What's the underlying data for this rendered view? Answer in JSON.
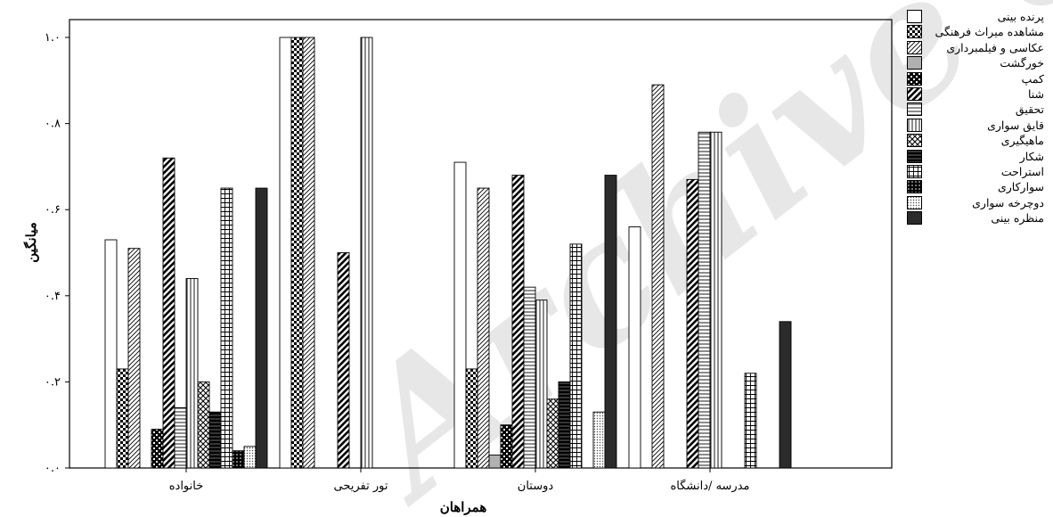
{
  "chart_data": {
    "type": "bar",
    "xlabel": "همراهان",
    "ylabel": "میانگین",
    "ylim": [
      0,
      1.0
    ],
    "yticks": [
      {
        "value": 0.0,
        "label": "۰.۰"
      },
      {
        "value": 0.2,
        "label": "۰.۲"
      },
      {
        "value": 0.4,
        "label": "۰.۴"
      },
      {
        "value": 0.6,
        "label": "۰.۶"
      },
      {
        "value": 0.8,
        "label": "۰.۸"
      },
      {
        "value": 1.0,
        "label": "۱.۰"
      }
    ],
    "categories": [
      "خانواده",
      "تور تفریحی",
      "دوستان",
      "مدرسه /دانشگاه"
    ],
    "series": [
      {
        "name": "پرنده بینی",
        "pattern": "white",
        "values": [
          0.53,
          1.0,
          0.71,
          0.56
        ]
      },
      {
        "name": "مشاهده میراث فرهنگی",
        "pattern": "checker",
        "values": [
          0.23,
          1.0,
          0.23,
          0
        ]
      },
      {
        "name": "عکاسی و فیلمبرداری",
        "pattern": "diag-thin",
        "values": [
          0.51,
          1.0,
          0.65,
          0.89
        ]
      },
      {
        "name": "خورگشت",
        "pattern": "gray",
        "values": [
          0,
          0,
          0.03,
          0
        ]
      },
      {
        "name": "کمپ",
        "pattern": "checker-dark",
        "values": [
          0.09,
          0,
          0.1,
          0
        ]
      },
      {
        "name": "شنا",
        "pattern": "diag-thick",
        "values": [
          0.72,
          0.5,
          0.68,
          0.67
        ]
      },
      {
        "name": "تحقیق",
        "pattern": "hlines",
        "values": [
          0.14,
          0,
          0.42,
          0.78
        ]
      },
      {
        "name": "قایق سواری",
        "pattern": "vlines",
        "values": [
          0.44,
          1.0,
          0.39,
          0.78
        ]
      },
      {
        "name": "ماهیگیری",
        "pattern": "crosshatch",
        "values": [
          0.2,
          0,
          0.16,
          0
        ]
      },
      {
        "name": "شکار",
        "pattern": "hlines-dark",
        "values": [
          0.13,
          0,
          0.2,
          0
        ]
      },
      {
        "name": "استراحت",
        "pattern": "grid",
        "values": [
          0.65,
          0,
          0.52,
          0.22
        ]
      },
      {
        "name": "سوارکاری",
        "pattern": "dots-dark",
        "values": [
          0.04,
          0,
          0,
          0
        ]
      },
      {
        "name": "دوچرخه سواری",
        "pattern": "dots-light",
        "values": [
          0.05,
          0,
          0.13,
          0
        ]
      },
      {
        "name": "منظره بینی",
        "pattern": "dark",
        "values": [
          0.65,
          0,
          0.68,
          0.34
        ]
      }
    ],
    "grid": false,
    "legend_position": "right"
  },
  "watermark": "Archive of SID"
}
